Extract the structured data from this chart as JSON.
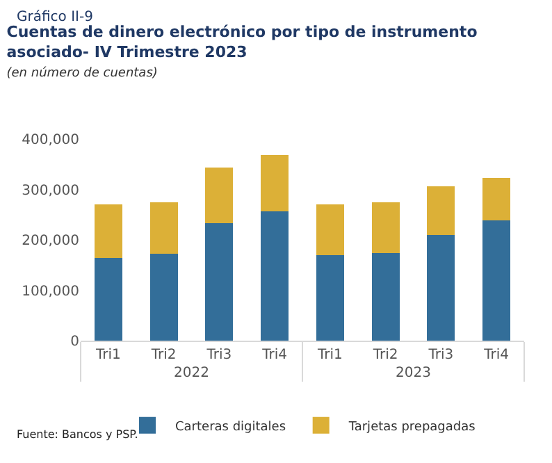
{
  "chart_data": {
    "type": "bar",
    "stacked": true,
    "title": "Cuentas de dinero electrónico por tipo de instrumento asociado- IV Trimestre 2023",
    "subtitle": "(en número de cuentas)",
    "categories": [
      "Tri1",
      "Tri2",
      "Tri3",
      "Tri4",
      "Tri1",
      "Tri2",
      "Tri3",
      "Tri4"
    ],
    "series": [
      {
        "name": "Carteras digitales",
        "color": "#336e99",
        "values": [
          164000,
          172000,
          233000,
          256000,
          169000,
          174000,
          210000,
          239000
        ]
      },
      {
        "name": "Tarjetas prepagadas",
        "color": "#dcb037",
        "values": [
          107000,
          102000,
          110000,
          112000,
          102000,
          100000,
          96000,
          84000
        ]
      }
    ],
    "ylim": [
      0,
      400000
    ],
    "yticks": [
      {
        "value": 0,
        "label": "0"
      },
      {
        "value": 100000,
        "label": "100,000"
      },
      {
        "value": 200000,
        "label": "200,000"
      },
      {
        "value": 300000,
        "label": "300,000"
      },
      {
        "value": 400000,
        "label": "400,000"
      }
    ],
    "legend": "bottom",
    "annotations": [
      "Gráfico II-9",
      "2022",
      "2023",
      "Fuente: Bancos y PSP."
    ]
  }
}
